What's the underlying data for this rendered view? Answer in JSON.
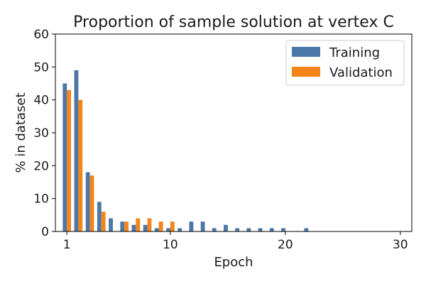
{
  "chart_data": {
    "type": "bar",
    "title": "Proportion of sample solution at vertex C",
    "xlabel": "Epoch",
    "ylabel": "% in dataset",
    "xlim": [
      0,
      31
    ],
    "ylim": [
      0,
      60
    ],
    "xticks": [
      1,
      10,
      20,
      30
    ],
    "yticks": [
      0,
      10,
      20,
      30,
      40,
      50,
      60
    ],
    "grid": false,
    "legend_position": "top-right",
    "series": [
      {
        "name": "Training",
        "color": "#4c78a8",
        "points": [
          [
            1,
            45
          ],
          [
            2,
            49
          ],
          [
            3,
            18
          ],
          [
            4,
            9
          ],
          [
            5,
            4
          ],
          [
            6,
            3
          ],
          [
            7,
            2
          ],
          [
            8,
            2
          ],
          [
            9,
            1
          ],
          [
            10,
            1
          ],
          [
            11,
            1
          ],
          [
            12,
            3
          ],
          [
            13,
            3
          ],
          [
            14,
            1
          ],
          [
            15,
            2
          ],
          [
            16,
            1
          ],
          [
            17,
            1
          ],
          [
            18,
            1
          ],
          [
            19,
            1
          ],
          [
            20,
            1
          ],
          [
            22,
            1
          ]
        ]
      },
      {
        "name": "Validation",
        "color": "#f58518",
        "points": [
          [
            1,
            43
          ],
          [
            2,
            40
          ],
          [
            3,
            17
          ],
          [
            4,
            6
          ],
          [
            6,
            3
          ],
          [
            7,
            4
          ],
          [
            8,
            4
          ],
          [
            9,
            3
          ],
          [
            10,
            3
          ]
        ]
      }
    ]
  }
}
